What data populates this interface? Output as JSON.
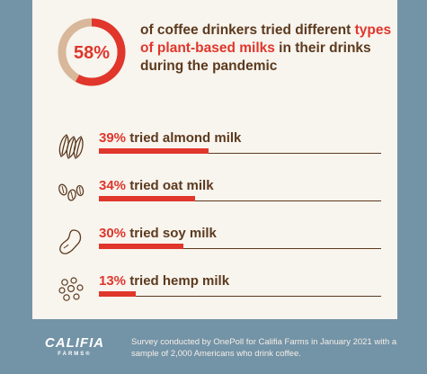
{
  "colors": {
    "accent": "#e0362b",
    "brown": "#5c3a1e",
    "donut_rest": "#d8b79a",
    "background": "#7393a7",
    "card": "#f8f4ee"
  },
  "headline": {
    "percent": "58%",
    "text_before": "of coffee drinkers tried different ",
    "text_highlight": "types of plant-based milks",
    "text_after": " in their drinks during the pandemic"
  },
  "chart_data": [
    {
      "type": "pie",
      "values": [
        58,
        42
      ],
      "categories": [
        "tried plant-based milks",
        ""
      ],
      "title": ""
    },
    {
      "type": "bar",
      "categories": [
        "almond milk",
        "oat milk",
        "soy milk",
        "hemp milk"
      ],
      "values": [
        39,
        34,
        30,
        13
      ],
      "xlim": [
        0,
        100
      ]
    }
  ],
  "stats": [
    {
      "pct": "39%",
      "label": " tried almond milk",
      "value": 39,
      "icon": "almond-icon"
    },
    {
      "pct": "34%",
      "label": " tried oat milk",
      "value": 34,
      "icon": "oat-icon"
    },
    {
      "pct": "30%",
      "label": " tried soy milk",
      "value": 30,
      "icon": "soy-bean-icon"
    },
    {
      "pct": "13%",
      "label": " tried hemp milk",
      "value": 13,
      "icon": "hemp-seed-icon"
    }
  ],
  "brand": {
    "name": "CALIFIA",
    "sub": "FARMS®"
  },
  "footnote": "Survey conducted by OnePoll for Califia Farms in January 2021 with a sample of 2,000 Americans who drink coffee."
}
